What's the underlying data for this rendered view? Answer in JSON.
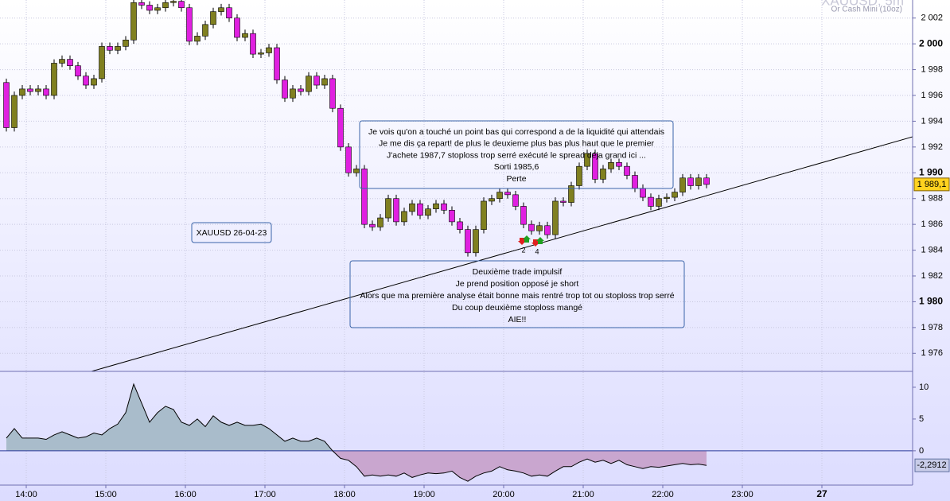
{
  "chart_data": [
    {
      "type": "candlestick",
      "title": "XAUUSD, 5m",
      "subtitle": "Or Cash Mini (10oz)",
      "x": [
        13.75,
        13.85,
        13.95,
        14.05,
        14.15,
        14.25,
        14.35,
        14.45,
        14.55,
        14.65,
        14.75,
        14.85,
        14.95,
        15.05,
        15.15,
        15.25,
        15.35,
        15.45,
        15.55,
        15.65,
        15.75,
        15.85,
        15.95,
        16.05,
        16.15,
        16.25,
        16.35,
        16.45,
        16.55,
        16.65,
        16.75,
        16.85,
        16.95,
        17.05,
        17.15,
        17.25,
        17.35,
        17.45,
        17.55,
        17.65,
        17.75,
        17.85,
        17.95,
        18.05,
        18.15,
        18.25,
        18.35,
        18.45,
        18.55,
        18.65,
        18.75,
        18.85,
        18.95,
        19.05,
        19.15,
        19.25,
        19.35,
        19.45,
        19.55,
        19.65,
        19.75,
        19.85,
        19.95,
        20.05,
        20.15,
        20.25,
        20.35,
        20.45,
        20.55,
        20.65,
        20.75,
        20.85,
        20.95,
        21.05,
        21.15,
        21.25,
        21.35,
        21.45,
        21.55,
        21.65,
        21.75,
        21.85,
        21.95,
        22.05,
        22.15,
        22.25,
        22.35,
        22.45,
        22.55
      ],
      "open": [
        1997,
        1993.5,
        1996,
        1996.5,
        1996.3,
        1996.5,
        1996,
        1998.5,
        1998.8,
        1998.3,
        1997.5,
        1996.8,
        1997.3,
        1999.8,
        1999.5,
        1999.8,
        2000.3,
        2003.2,
        2003,
        2002.6,
        2002.8,
        2003.2,
        2003.3,
        2002.8,
        2000.2,
        2000.6,
        2001.5,
        2002.5,
        2002.8,
        2002,
        2000.5,
        2000.8,
        1999.2,
        1999.3,
        1999.7,
        1997.2,
        1995.8,
        1996.5,
        1996.3,
        1997.5,
        1996.8,
        1997.3,
        1995,
        1992,
        1990,
        1990.3,
        1986,
        1985.8,
        1986.5,
        1988,
        1986.2,
        1987,
        1987.6,
        1986.7,
        1987.2,
        1987.6,
        1987.1,
        1986.2,
        1985.6,
        1983.8,
        1985.6,
        1987.8,
        1988,
        1988.5,
        1988.3,
        1987.4,
        1986,
        1985.5,
        1985.9,
        1985.2,
        1987.8,
        1987.7,
        1989,
        1990.5,
        1991.5,
        1989.5,
        1990.3,
        1990.8,
        1990.5,
        1989.8,
        1988.8,
        1988.1,
        1987.4,
        1988,
        1988.1,
        1988.5,
        1989.6,
        1989,
        1989.6
      ],
      "high": [
        1997.3,
        1996.3,
        1996.8,
        1996.8,
        1996.8,
        1996.8,
        1998.8,
        1999.1,
        1999.1,
        1998.6,
        1997.8,
        1997.6,
        2000.1,
        2000.1,
        2000.1,
        2000.6,
        2003.5,
        2003.5,
        2003.3,
        2003.1,
        2003.5,
        2003.6,
        2003.6,
        2003.1,
        2000.9,
        2001.8,
        2002.8,
        2003.1,
        2003.1,
        2002.3,
        2001.1,
        2001.1,
        1999.6,
        2000,
        2000,
        1997.5,
        1996.8,
        1996.8,
        1997.8,
        1997.8,
        1997.6,
        1997.6,
        1995.3,
        1992.3,
        1990.6,
        1990.6,
        1986.3,
        1986.8,
        1988.3,
        1988.3,
        1987.3,
        1987.9,
        1987.9,
        1987.5,
        1987.9,
        1987.9,
        1987.4,
        1986.5,
        1985.9,
        1985.9,
        1988.1,
        1988.3,
        1988.8,
        1988.8,
        1988.6,
        1987.7,
        1986.3,
        1986.2,
        1986.2,
        1988.1,
        1988.1,
        1989.3,
        1990.8,
        1991.8,
        1991.8,
        1990.6,
        1991.1,
        1991.1,
        1990.8,
        1990.1,
        1989.1,
        1988.4,
        1988.3,
        1988.4,
        1988.8,
        1989.9,
        1989.9,
        1989.9,
        1989.9
      ],
      "low": [
        1993.2,
        1993.2,
        1995.7,
        1996,
        1996,
        1995.7,
        1995.7,
        1998.2,
        1998,
        1997.2,
        1996.5,
        1996.5,
        1997,
        1999.2,
        1999.2,
        1999.5,
        2000,
        2002.7,
        2002.3,
        2002.3,
        2002.5,
        2002.9,
        2002.5,
        1999.9,
        1999.9,
        2000.3,
        2001.2,
        2002.2,
        2001.7,
        2000.2,
        2000.2,
        1998.9,
        1998.9,
        1999,
        1996.9,
        1995.5,
        1995.5,
        1996,
        1996,
        1996.5,
        1996.5,
        1994.7,
        1991.7,
        1989.7,
        1989.7,
        1985.7,
        1985.5,
        1985.5,
        1986.2,
        1985.9,
        1985.9,
        1986.7,
        1986.4,
        1986.4,
        1986.9,
        1986.8,
        1985.9,
        1985.3,
        1983.5,
        1983.5,
        1985.3,
        1987.5,
        1987.7,
        1988,
        1987.1,
        1985.7,
        1985.2,
        1985.2,
        1984.9,
        1984.9,
        1987.4,
        1987.4,
        1988.7,
        1990.2,
        1989.2,
        1989.2,
        1990,
        1990.2,
        1989.5,
        1988.5,
        1987.8,
        1987.1,
        1987.1,
        1987.7,
        1987.8,
        1988.2,
        1988.7,
        1988.7,
        1988.8
      ],
      "close": [
        1993.5,
        1996,
        1996.5,
        1996.3,
        1996.5,
        1996,
        1998.5,
        1998.8,
        1998.3,
        1997.5,
        1996.8,
        1997.3,
        1999.8,
        1999.5,
        1999.8,
        2000.3,
        2003.2,
        2003,
        2002.6,
        2002.8,
        2003.2,
        2003.3,
        2002.8,
        2000.2,
        2000.6,
        2001.5,
        2002.5,
        2002.8,
        2002,
        2000.5,
        2000.8,
        1999.2,
        1999.3,
        1999.7,
        1997.2,
        1995.8,
        1996.5,
        1996.3,
        1997.5,
        1996.8,
        1997.3,
        1995,
        1992,
        1990,
        1990.3,
        1986,
        1985.8,
        1986.5,
        1988,
        1986.2,
        1987,
        1987.6,
        1986.7,
        1987.2,
        1987.6,
        1987.1,
        1986.2,
        1985.6,
        1983.8,
        1985.6,
        1987.8,
        1988,
        1988.5,
        1988.3,
        1987.4,
        1986,
        1985.5,
        1985.9,
        1985.2,
        1987.8,
        1987.7,
        1989,
        1990.5,
        1991.5,
        1989.5,
        1990.3,
        1990.8,
        1990.5,
        1989.8,
        1988.8,
        1988.1,
        1987.4,
        1988,
        1988.1,
        1988.5,
        1989.6,
        1989,
        1989.6,
        1989.1
      ],
      "up_color": "#808020",
      "down_color": "#e020e0",
      "xlim": [
        13.67,
        25.14
      ],
      "ylim": [
        1974.6,
        2003.4
      ],
      "yticks": [
        {
          "value": 2002,
          "label": "2 002"
        },
        {
          "value": 2000,
          "label": "2 000"
        },
        {
          "value": 1998,
          "label": "1 998"
        },
        {
          "value": 1996,
          "label": "1 996"
        },
        {
          "value": 1994,
          "label": "1 994"
        },
        {
          "value": 1992,
          "label": "1 992"
        },
        {
          "value": 1990,
          "label": "1 990"
        },
        {
          "value": 1988,
          "label": "1 988"
        },
        {
          "value": 1986,
          "label": "1 986"
        },
        {
          "value": 1984,
          "label": "1 984"
        },
        {
          "value": 1982,
          "label": "1 982"
        },
        {
          "value": 1980,
          "label": "1 980"
        },
        {
          "value": 1978,
          "label": "1 978"
        },
        {
          "value": 1976,
          "label": "1 976"
        }
      ],
      "last_price": {
        "value": 1989.1,
        "label": "1 989,1"
      },
      "grid": true,
      "annotations": [
        {
          "lines": [
            "Je vois qu'on a touché un point bas qui correspond a de la liquidité qui attendais",
            "Je me dis ça repart! de plus le deuxieme plus bas plus haut que le premier",
            "J'achete 1987,7 stoploss trop serré exécuté le spread déja grand ici ...",
            "Sorti 1985,6",
            "Perte"
          ]
        },
        {
          "lines": [
            "Deuxième trade impulsif",
            "Je prend position opposé je short",
            "Alors que ma première analyse était bonne mais rentré trop tot ou stoploss trop serré",
            "Du coup deuxième stoploss mangé",
            "AIE!!"
          ]
        },
        {
          "lines": [
            "XAUUSD 26-04-23"
          ]
        }
      ],
      "trade_labels": [
        "2",
        "4"
      ]
    },
    {
      "type": "area",
      "x": [
        13.75,
        13.85,
        13.95,
        14.05,
        14.15,
        14.25,
        14.35,
        14.45,
        14.55,
        14.65,
        14.75,
        14.85,
        14.95,
        15.05,
        15.15,
        15.25,
        15.35,
        15.45,
        15.55,
        15.65,
        15.75,
        15.85,
        15.95,
        16.05,
        16.15,
        16.25,
        16.35,
        16.45,
        16.55,
        16.65,
        16.75,
        16.85,
        16.95,
        17.05,
        17.15,
        17.25,
        17.35,
        17.45,
        17.55,
        17.65,
        17.75,
        17.85,
        17.95,
        18.05,
        18.15,
        18.25,
        18.35,
        18.45,
        18.55,
        18.65,
        18.75,
        18.85,
        18.95,
        19.05,
        19.15,
        19.25,
        19.35,
        19.45,
        19.55,
        19.65,
        19.75,
        19.85,
        19.95,
        20.05,
        20.15,
        20.25,
        20.35,
        20.45,
        20.55,
        20.65,
        20.75,
        20.85,
        20.95,
        21.05,
        21.15,
        21.25,
        21.35,
        21.45,
        21.55,
        21.65,
        21.75,
        21.85,
        21.95,
        22.05,
        22.15,
        22.25,
        22.35,
        22.45,
        22.55
      ],
      "values": [
        2,
        3.5,
        2,
        2,
        2,
        1.8,
        2.5,
        3,
        2.5,
        2,
        2.2,
        2.8,
        2.5,
        3.5,
        4.2,
        6,
        10.5,
        7.5,
        4.5,
        6,
        7,
        6.5,
        4.5,
        4,
        5,
        3.8,
        5.5,
        4.5,
        4,
        4.5,
        4,
        4,
        4.2,
        3.5,
        2.5,
        1.5,
        2,
        1.5,
        1.5,
        2,
        1.5,
        0,
        -1.2,
        -1.5,
        -2.5,
        -4,
        -3.8,
        -4,
        -3.8,
        -4,
        -3.5,
        -4.2,
        -3.8,
        -3.5,
        -3.6,
        -3.5,
        -3.2,
        -4.2,
        -4.8,
        -4,
        -3.5,
        -3.2,
        -2.5,
        -3,
        -3.2,
        -3.5,
        -4,
        -3.8,
        -4,
        -3.2,
        -2.5,
        -2.5,
        -1.8,
        -1.3,
        -1.8,
        -1.5,
        -2,
        -1.5,
        -2.2,
        -2.5,
        -2.8,
        -2.5,
        -2.6,
        -2.4,
        -2.2,
        -2,
        -2.2,
        -2.1,
        -2.29
      ],
      "pos_color": "#a9bccb",
      "neg_color": "#c9a6cf",
      "line_color": "#000000",
      "xlim": [
        13.67,
        25.14
      ],
      "ylim": [
        -5.4,
        12.5
      ],
      "yticks": [
        10,
        5,
        0
      ],
      "last": {
        "value": -2.2912,
        "label": "-2,2912"
      },
      "xticks": [
        {
          "value": 14,
          "label": "14:00"
        },
        {
          "value": 15,
          "label": "15:00"
        },
        {
          "value": 16,
          "label": "16:00"
        },
        {
          "value": 17,
          "label": "17:00"
        },
        {
          "value": 18,
          "label": "18:00"
        },
        {
          "value": 19,
          "label": "19:00"
        },
        {
          "value": 20,
          "label": "20:00"
        },
        {
          "value": 21,
          "label": "21:00"
        },
        {
          "value": 22,
          "label": "22:00"
        },
        {
          "value": 23,
          "label": "23:00"
        },
        {
          "value": 24,
          "label": "27"
        }
      ]
    }
  ]
}
